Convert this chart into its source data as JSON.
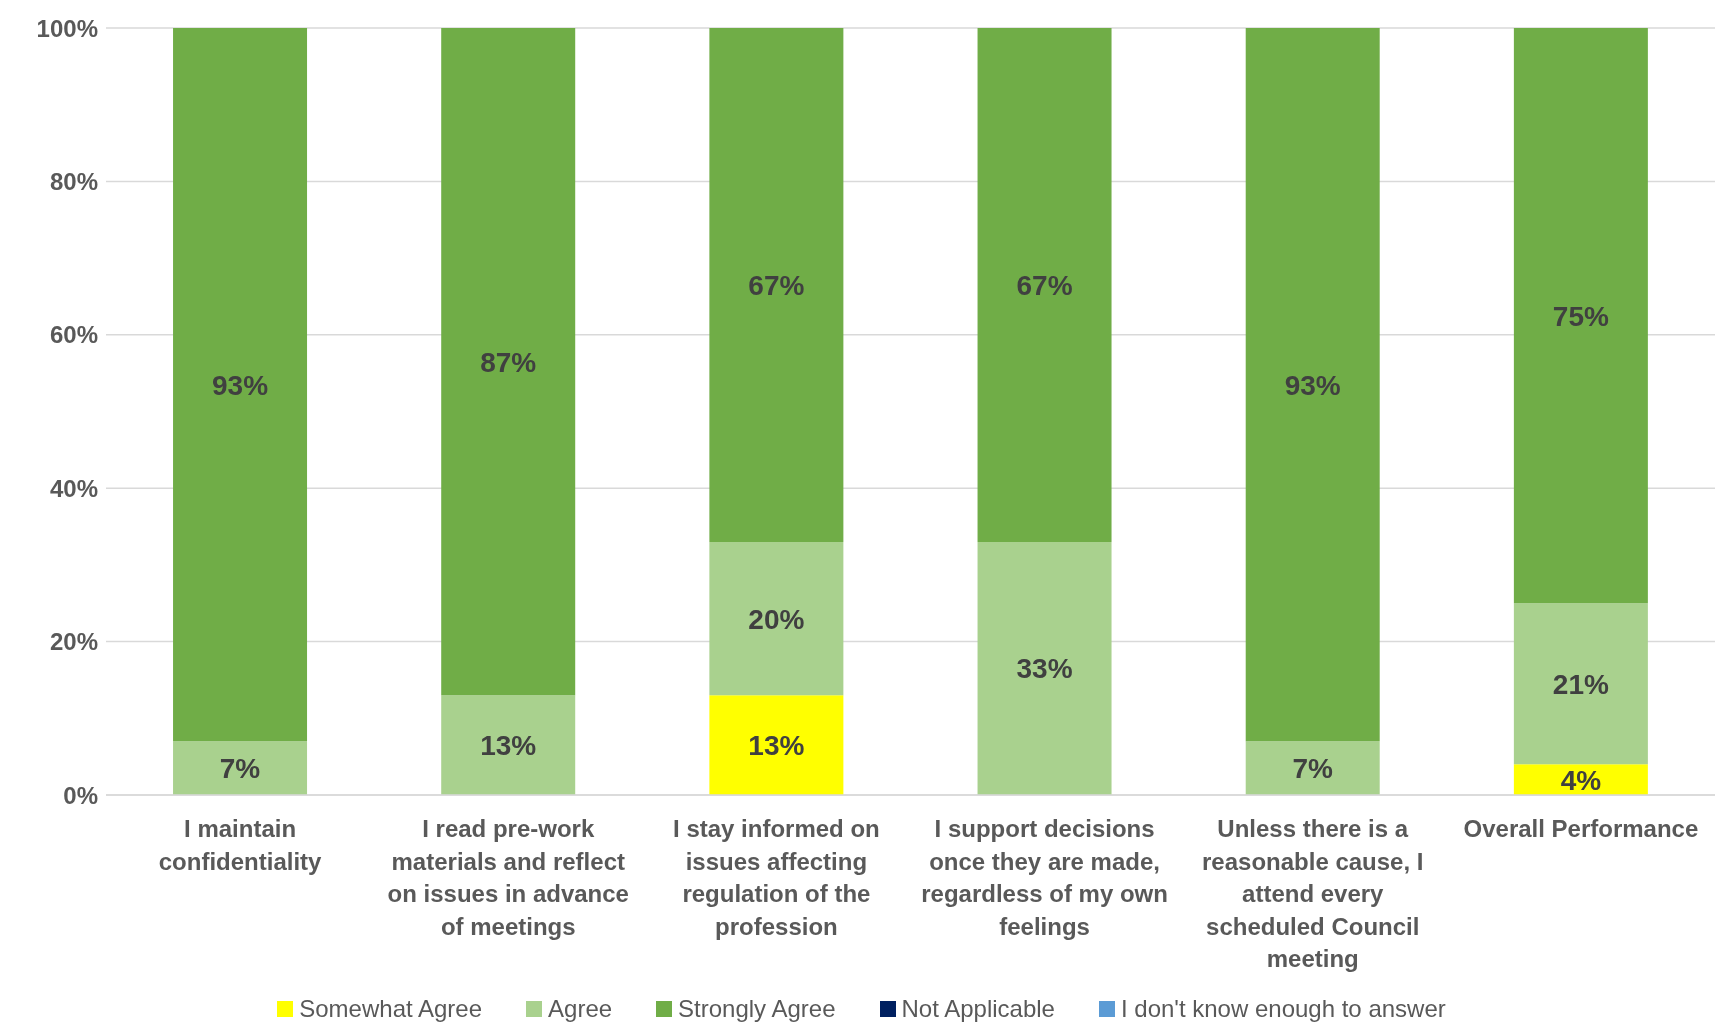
{
  "chart_data": {
    "type": "bar",
    "stacked": true,
    "categories": [
      "I maintain confidentiality",
      "I read pre-work materials and reflect on issues in advance of meetings",
      "I stay informed on issues affecting regulation of the profession",
      "I support decisions once they are made, regardless of my own feelings",
      "Unless there is a reasonable cause, I attend every scheduled Council meeting",
      "Overall Performance"
    ],
    "series": [
      {
        "name": "Somewhat Agree",
        "color": "#ffff00",
        "values": [
          0,
          0,
          13,
          0,
          0,
          4
        ],
        "value_labels": [
          null,
          null,
          "13%",
          null,
          null,
          "4%"
        ]
      },
      {
        "name": "Agree",
        "color": "#a9d18e",
        "values": [
          7,
          13,
          20,
          33,
          7,
          21
        ],
        "value_labels": [
          "7%",
          "13%",
          "20%",
          "33%",
          "7%",
          "21%"
        ]
      },
      {
        "name": "Strongly Agree",
        "color": "#70ad47",
        "values": [
          93,
          87,
          67,
          67,
          93,
          75
        ],
        "value_labels": [
          "93%",
          "87%",
          "67%",
          "67%",
          "93%",
          "75%"
        ]
      },
      {
        "name": "Not Applicable",
        "color": "#002060",
        "values": [
          0,
          0,
          0,
          0,
          0,
          0
        ],
        "value_labels": [
          null,
          null,
          null,
          null,
          null,
          null
        ]
      },
      {
        "name": "I don't know enough to answer",
        "color": "#5b9bd5",
        "values": [
          0,
          0,
          0,
          0,
          0,
          0
        ],
        "value_labels": [
          null,
          null,
          null,
          null,
          null,
          null
        ]
      }
    ],
    "ylim": [
      0,
      100
    ],
    "yticks": [
      {
        "value": 0,
        "label": "0%"
      },
      {
        "value": 20,
        "label": "20%"
      },
      {
        "value": 40,
        "label": "40%"
      },
      {
        "value": 60,
        "label": "60%"
      },
      {
        "value": 80,
        "label": "80%"
      },
      {
        "value": 100,
        "label": "100%"
      }
    ],
    "grid": "y",
    "legend": "bottom"
  }
}
